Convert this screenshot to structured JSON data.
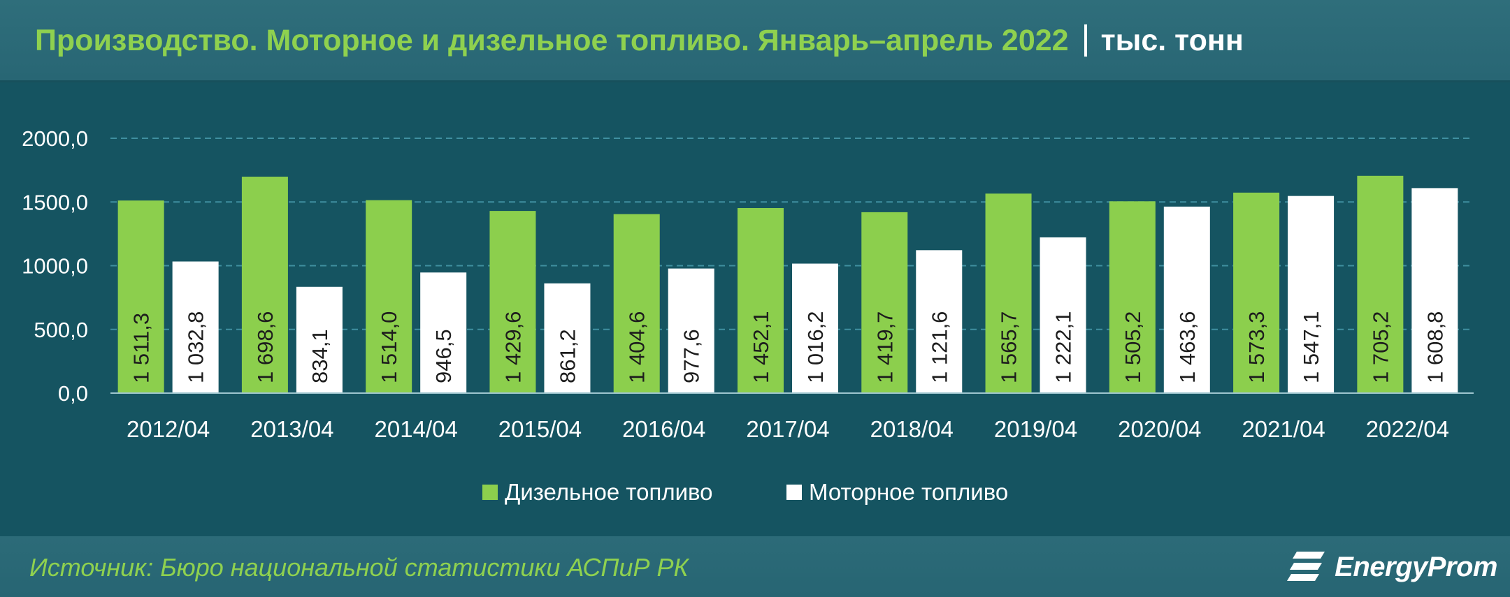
{
  "header": {
    "title": "Производство. Моторное и дизельное топливо. Январь–апрель 2022",
    "unit": "тыс. тонн"
  },
  "footer": {
    "source": "Источник: Бюро национальной статистики АСПиР РК",
    "logo": "EnergyProm"
  },
  "chart_data": {
    "type": "bar",
    "categories": [
      "2012/04",
      "2013/04",
      "2014/04",
      "2015/04",
      "2016/04",
      "2017/04",
      "2018/04",
      "2019/04",
      "2020/04",
      "2021/04",
      "2022/04"
    ],
    "series": [
      {
        "name": "Дизельное топливо",
        "color": "#8ccf4d",
        "values": [
          1511.3,
          1698.6,
          1514.0,
          1429.6,
          1404.6,
          1452.1,
          1419.7,
          1565.7,
          1505.2,
          1573.3,
          1705.2
        ],
        "labels": [
          "1 511,3",
          "1 698,6",
          "1 514,0",
          "1 429,6",
          "1 404,6",
          "1 452,1",
          "1 419,7",
          "1 565,7",
          "1 505,2",
          "1 573,3",
          "1 705,2"
        ]
      },
      {
        "name": "Моторное топливо",
        "color": "#ffffff",
        "values": [
          1032.8,
          834.1,
          946.5,
          861.2,
          977.6,
          1016.2,
          1121.6,
          1222.1,
          1463.6,
          1547.1,
          1608.8
        ],
        "labels": [
          "1 032,8",
          "834,1",
          "946,5",
          "861,2",
          "977,6",
          "1 016,2",
          "1 121,6",
          "1 222,1",
          "1 463,6",
          "1 547,1",
          "1 608,8"
        ]
      }
    ],
    "yticks": [
      0,
      500,
      1000,
      1500,
      2000
    ],
    "ytick_labels": [
      "0,0",
      "500,0",
      "1000,0",
      "1500,0",
      "2000,0"
    ],
    "ylim": [
      0,
      2000
    ],
    "grid": true,
    "legend_position": "bottom"
  }
}
